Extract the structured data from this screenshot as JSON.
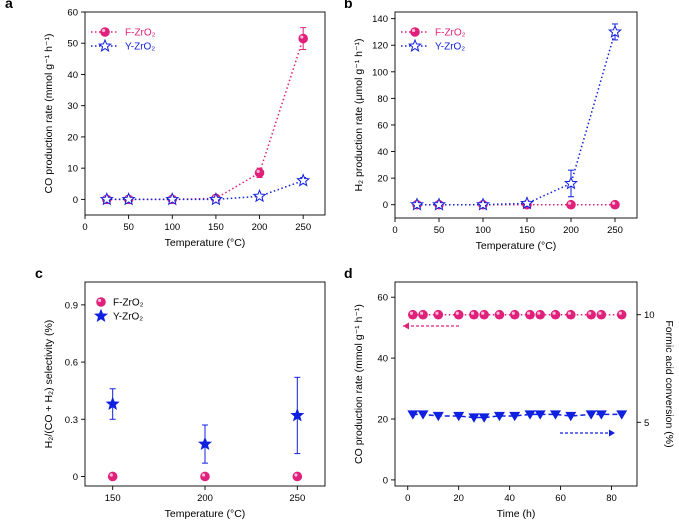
{
  "colors": {
    "magenta": "#e0207a",
    "blue": "#1020e0"
  },
  "chart_data": [
    {
      "panel": "a",
      "type": "line",
      "x": [
        25,
        50,
        100,
        150,
        200,
        250
      ],
      "xlabel": "Temperature (°C)",
      "ylabel": "CO production rate (mmol g⁻¹ h⁻¹)",
      "xlim": [
        0,
        275
      ],
      "ylim": [
        -5,
        60
      ],
      "xticks": [
        0,
        50,
        100,
        150,
        200,
        250
      ],
      "yticks": [
        0,
        10,
        20,
        30,
        40,
        50,
        60
      ],
      "legend_position": "top-left",
      "series": [
        {
          "name": "F-ZrO₂",
          "values": [
            0,
            0,
            0,
            0.3,
            8.5,
            51.5
          ],
          "errors": [
            0,
            0,
            0,
            0.3,
            1.5,
            3.5
          ],
          "marker": "circle",
          "color": "#e0207a"
        },
        {
          "name": "Y-ZrO₂",
          "values": [
            0,
            0,
            0,
            0,
            1,
            6
          ],
          "errors": [
            0,
            0,
            0,
            0,
            0.5,
            1
          ],
          "marker": "star",
          "color": "#1020e0"
        }
      ]
    },
    {
      "panel": "b",
      "type": "line",
      "x": [
        25,
        50,
        100,
        150,
        200,
        250
      ],
      "xlabel": "Temperature (°C)",
      "ylabel": "H₂ production rate (μmol g⁻¹ h⁻¹)",
      "xlim": [
        0,
        275
      ],
      "ylim": [
        -10,
        145
      ],
      "xticks": [
        0,
        50,
        100,
        150,
        200,
        250
      ],
      "yticks": [
        0,
        20,
        40,
        60,
        80,
        100,
        120,
        140
      ],
      "legend_position": "top-left",
      "series": [
        {
          "name": "F-ZrO₂",
          "values": [
            0,
            0,
            0,
            0,
            0,
            0
          ],
          "errors": [
            0,
            0,
            0,
            0,
            0,
            0
          ],
          "marker": "circle",
          "color": "#e0207a"
        },
        {
          "name": "Y-ZrO₂",
          "values": [
            0,
            0,
            0,
            1,
            16,
            130
          ],
          "errors": [
            0,
            0,
            0,
            0,
            10,
            6
          ],
          "marker": "star",
          "color": "#1020e0"
        }
      ]
    },
    {
      "panel": "c",
      "type": "scatter",
      "x": [
        150,
        200,
        250
      ],
      "xlabel": "Temperature (°C)",
      "ylabel": "H₂/(CO + H₂) selectivity (%)",
      "xlim": [
        135,
        265
      ],
      "ylim": [
        -0.05,
        1.02
      ],
      "xticks": [
        150,
        200,
        250
      ],
      "yticks": [
        0,
        0.3,
        0.6,
        0.9
      ],
      "ytick_labels": [
        "0",
        "0.3",
        "0.6",
        "0.9"
      ],
      "legend_position": "top-left",
      "series": [
        {
          "name": "F-ZrO₂",
          "values": [
            0,
            0,
            0
          ],
          "errors": [
            0,
            0,
            0
          ],
          "marker": "circle",
          "color": "#e0207a"
        },
        {
          "name": "Y-ZrO₂",
          "values": [
            0.38,
            0.17,
            0.32
          ],
          "errors": [
            0.08,
            0.1,
            0.2
          ],
          "marker": "star",
          "color": "#1020e0"
        }
      ]
    },
    {
      "panel": "d",
      "type": "line",
      "x": [
        2,
        6,
        12,
        20,
        26,
        30,
        36,
        42,
        48,
        52,
        58,
        64,
        72,
        76,
        84
      ],
      "xlabel": "Time (h)",
      "ylabel": "CO production rate (mmol g⁻¹ h⁻¹)",
      "y2label": "Formic acid conversion (%)",
      "xlim": [
        -5,
        90
      ],
      "ylim": [
        -2,
        65
      ],
      "xticks": [
        0,
        20,
        40,
        60,
        80
      ],
      "yticks": [
        0,
        20,
        40,
        60
      ],
      "y2lim": [
        2.04,
        11.52
      ],
      "y2ticks": [
        5,
        10
      ],
      "series": [
        {
          "name": "Formic acid conversion",
          "axis": "right",
          "values": [
            10,
            10,
            10,
            10,
            10,
            10,
            10,
            10,
            10,
            10,
            10,
            10,
            10,
            10,
            10
          ],
          "marker": "circle",
          "color": "#e0207a",
          "arrow": "left"
        },
        {
          "name": "CO production rate",
          "axis": "left",
          "values": [
            21.5,
            21.5,
            21,
            21,
            20.5,
            20.5,
            21,
            21,
            21.5,
            21.5,
            21.5,
            21,
            21.5,
            21.5,
            21.5
          ],
          "marker": "triangle-down",
          "color": "#1020e0",
          "arrow": "right"
        }
      ]
    }
  ]
}
